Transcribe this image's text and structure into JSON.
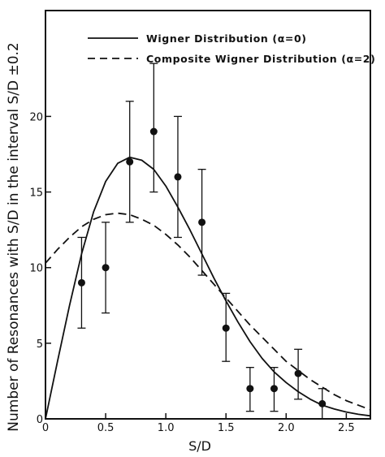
{
  "chart_data": {
    "type": "scatter",
    "xlabel": "S/D",
    "ylabel": "Number of Resonances with S/D in the interval S/D ±0.2",
    "xlim": [
      0,
      2.7
    ],
    "ylim": [
      0,
      27
    ],
    "xticks": [
      0,
      0.5,
      1.0,
      1.5,
      2.0,
      2.5
    ],
    "xtick_labels": [
      "0",
      "0.5",
      "1.0",
      "1.5",
      "2.0",
      "2.5"
    ],
    "yticks": [
      0,
      5,
      10,
      15,
      20
    ],
    "ytick_labels": [
      "0",
      "5",
      "10",
      "15",
      "20"
    ],
    "legend_position": "top-left",
    "grid": false,
    "series": [
      {
        "name": "Wigner Distribution (α=0)",
        "kind": "line",
        "style": "solid",
        "x": [
          0,
          0.1,
          0.2,
          0.3,
          0.4,
          0.5,
          0.6,
          0.7,
          0.8,
          0.9,
          1.0,
          1.1,
          1.2,
          1.3,
          1.4,
          1.5,
          1.6,
          1.7,
          1.8,
          1.9,
          2.0,
          2.1,
          2.2,
          2.3,
          2.4,
          2.5,
          2.6,
          2.7
        ],
        "y": [
          0,
          3.8,
          7.5,
          10.9,
          13.7,
          15.7,
          16.9,
          17.3,
          17.1,
          16.5,
          15.4,
          14.0,
          12.5,
          10.9,
          9.3,
          7.8,
          6.4,
          5.1,
          4.0,
          3.1,
          2.4,
          1.8,
          1.3,
          0.9,
          0.65,
          0.45,
          0.3,
          0.2
        ]
      },
      {
        "name": "Composite Wigner Distribution (α=2)",
        "kind": "line",
        "style": "dashed",
        "x": [
          0,
          0.1,
          0.2,
          0.3,
          0.4,
          0.5,
          0.6,
          0.7,
          0.8,
          0.9,
          1.0,
          1.1,
          1.2,
          1.3,
          1.4,
          1.5,
          1.6,
          1.7,
          1.8,
          1.9,
          2.0,
          2.1,
          2.2,
          2.3,
          2.4,
          2.5,
          2.6,
          2.7
        ],
        "y": [
          10.3,
          11.2,
          12.0,
          12.7,
          13.2,
          13.5,
          13.6,
          13.5,
          13.2,
          12.8,
          12.2,
          11.5,
          10.7,
          9.8,
          8.9,
          8.0,
          7.1,
          6.2,
          5.4,
          4.6,
          3.8,
          3.2,
          2.6,
          2.1,
          1.6,
          1.2,
          0.9,
          0.6
        ]
      },
      {
        "name": "",
        "kind": "points",
        "x": [
          0.3,
          0.5,
          0.7,
          0.9,
          1.1,
          1.3,
          1.5,
          1.7,
          1.9,
          2.1,
          2.3
        ],
        "y": [
          9,
          10,
          17,
          19,
          16,
          13,
          6,
          2,
          2,
          3,
          1
        ],
        "err_low": [
          6,
          7,
          13,
          15,
          12,
          9.5,
          3.8,
          0.5,
          0.5,
          1.3,
          0
        ],
        "err_high": [
          12,
          13,
          21,
          23.5,
          20,
          16.5,
          8.3,
          3.4,
          3.4,
          4.6,
          2
        ]
      }
    ]
  }
}
